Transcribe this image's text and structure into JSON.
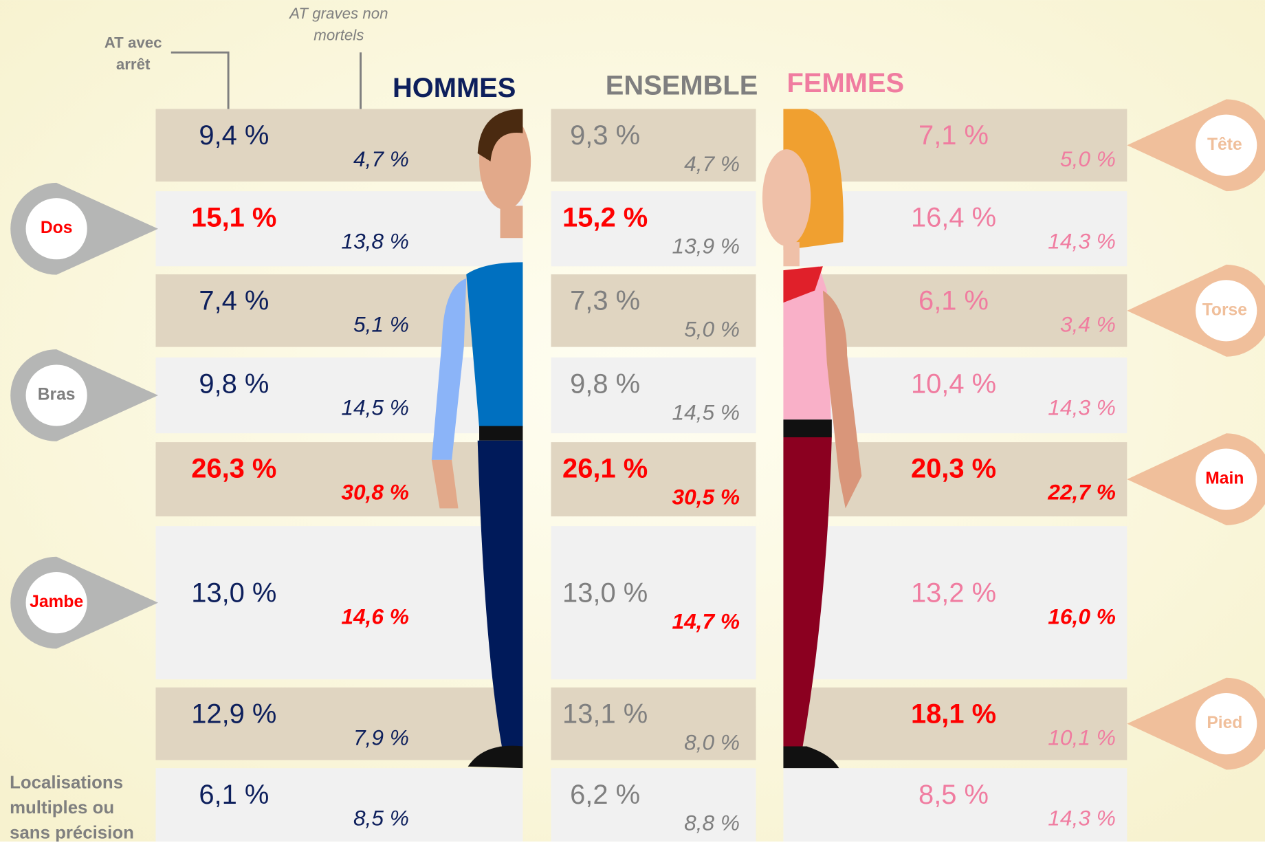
{
  "legend": {
    "with_leave": "AT avec arrêt",
    "severe": "AT graves non mortels"
  },
  "headers": {
    "men": "HOMMES",
    "all": "ENSEMBLE",
    "women": "FEMMES"
  },
  "rows": [
    {
      "label": "Tête",
      "side": "right",
      "pin": "#f0bf9b",
      "men": [
        {
          "text": "9,4 %"
        },
        {
          "text": "4,7 %"
        }
      ],
      "all": [
        {
          "text": "9,3 %"
        },
        {
          "text": "4,7 %"
        }
      ],
      "women": [
        {
          "text": "7,1 %"
        },
        {
          "text": "5,0 %"
        }
      ]
    },
    {
      "label": "Dos",
      "side": "left",
      "pin": "#b5b6b5",
      "red": true,
      "men": [
        {
          "text": "15,1 %",
          "red": true
        },
        {
          "text": "13,8 %"
        }
      ],
      "all": [
        {
          "text": "15,2 %",
          "red": true
        },
        {
          "text": "13,9 %"
        }
      ],
      "women": [
        {
          "text": "16,4 %"
        },
        {
          "text": "14,3 %"
        }
      ]
    },
    {
      "label": "Torse",
      "side": "right",
      "pin": "#f0bf9b",
      "men": [
        {
          "text": "7,4 %"
        },
        {
          "text": "5,1 %"
        }
      ],
      "all": [
        {
          "text": "7,3 %"
        },
        {
          "text": "5,0 %"
        }
      ],
      "women": [
        {
          "text": "6,1 %"
        },
        {
          "text": "3,4 %"
        }
      ]
    },
    {
      "label": "Bras",
      "side": "left",
      "pin": "#b5b6b5",
      "men": [
        {
          "text": "9,8 %"
        },
        {
          "text": "14,5 %"
        }
      ],
      "all": [
        {
          "text": "9,8 %"
        },
        {
          "text": "14,5 %"
        }
      ],
      "women": [
        {
          "text": "10,4 %"
        },
        {
          "text": "14,3 %"
        }
      ]
    },
    {
      "label": "Main",
      "side": "right",
      "pin": "#f0bf9b",
      "red": true,
      "men": [
        {
          "text": "26,3 %",
          "red": true
        },
        {
          "text": "30,8 %",
          "red": true
        }
      ],
      "all": [
        {
          "text": "26,1 %",
          "red": true
        },
        {
          "text": "30,5 %",
          "red": true
        }
      ],
      "women": [
        {
          "text": "20,3 %",
          "red": true
        },
        {
          "text": "22,7 %",
          "red": true
        }
      ]
    },
    {
      "label": "Jambe",
      "side": "left",
      "pin": "#b5b6b5",
      "red": true,
      "men": [
        {
          "text": "13,0 %"
        },
        {
          "text": "14,6 %",
          "red": true
        }
      ],
      "all": [
        {
          "text": "13,0 %"
        },
        {
          "text": "14,7 %",
          "red": true
        }
      ],
      "women": [
        {
          "text": "13,2 %"
        },
        {
          "text": "16,0 %",
          "red": true
        }
      ]
    },
    {
      "label": "Pied",
      "side": "right",
      "pin": "#f0bf9b",
      "men": [
        {
          "text": "12,9 %"
        },
        {
          "text": "7,9 %"
        }
      ],
      "all": [
        {
          "text": "13,1 %"
        },
        {
          "text": "8,0 %"
        }
      ],
      "women": [
        {
          "text": "18,1 %",
          "red": true
        },
        {
          "text": "10,1 %"
        }
      ]
    },
    {
      "label": "Localisations multiples ou sans précision",
      "side": "left",
      "men": [
        {
          "text": "6,1 %"
        },
        {
          "text": "8,5 %"
        }
      ],
      "all": [
        {
          "text": "6,2 %"
        },
        {
          "text": "8,8 %"
        }
      ],
      "women": [
        {
          "text": "8,5 %"
        },
        {
          "text": "14,3 %"
        }
      ]
    }
  ]
}
